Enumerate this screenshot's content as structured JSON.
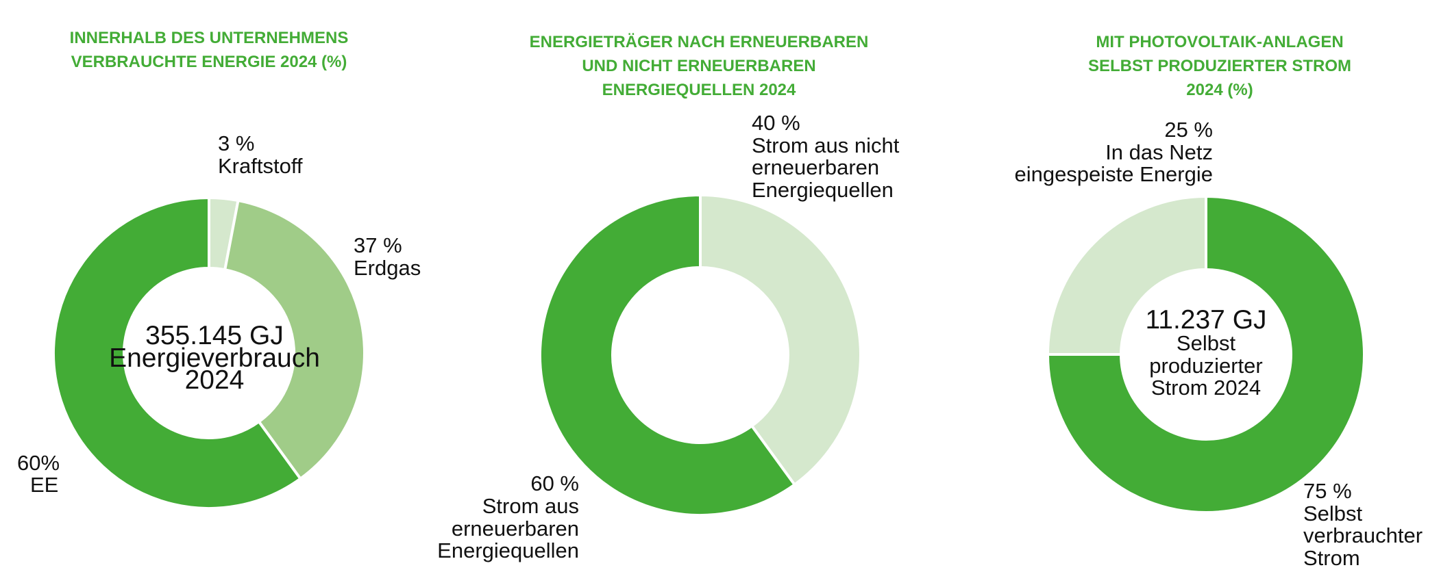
{
  "chart_data": [
    {
      "type": "pie",
      "title_lines": [
        "INNERHALB DES UNTERNEHMENS",
        "VERBRAUCHTE ENERGIE 2024 (%)"
      ],
      "center_lines": [
        "355.145 GJ",
        "Energieverbrauch",
        "2024"
      ],
      "slices": [
        {
          "label": "Kraftstoff",
          "value_text": "3 %",
          "value": 3,
          "color": "#d5e8cd"
        },
        {
          "label": "Erdgas",
          "value_text": "37 %",
          "value": 37,
          "color": "#a0cc88"
        },
        {
          "label": "EE",
          "value_text": "60%",
          "value": 60,
          "color": "#43ac36"
        }
      ]
    },
    {
      "type": "pie",
      "title_lines": [
        "ENERGIETRÄGER NACH ERNEUERBAREN",
        "UND NICHT ERNEUERBAREN",
        "ENERGIEQUELLEN 2024"
      ],
      "center_lines": [],
      "slices": [
        {
          "label": "Strom aus nicht erneuerbaren Energiequellen",
          "value_text": "40 %",
          "value": 40,
          "color": "#d5e8cd"
        },
        {
          "label": "Strom aus erneuerbaren Energiequellen",
          "value_text": "60 %",
          "value": 60,
          "color": "#43ac36"
        }
      ]
    },
    {
      "type": "pie",
      "title_lines": [
        "MIT PHOTOVOLTAIK-ANLAGEN",
        "SELBST PRODUZIERTER STROM",
        "2024 (%)"
      ],
      "center_lines": [
        "11.237 GJ",
        "Selbst",
        "produzierter",
        "Strom 2024"
      ],
      "slices": [
        {
          "label": "Selbst verbrauchter Strom",
          "value_text": "75 %",
          "value": 75,
          "color": "#43ac36"
        },
        {
          "label": "In das Netz eingespeiste Energie",
          "value_text": "25 %",
          "value": 25,
          "color": "#d5e8cd"
        }
      ]
    }
  ],
  "label_lines": [
    [
      [
        "3 %",
        "Kraftstoff"
      ],
      [
        "37 %",
        "Erdgas"
      ],
      [
        "60%",
        "EE"
      ]
    ],
    [
      [
        "40 %",
        "Strom aus nicht",
        "erneuerbaren",
        "Energiequellen"
      ],
      [
        "60 %",
        "Strom aus",
        "erneuerbaren",
        "Energiequellen"
      ]
    ],
    [
      [
        "75 %",
        "Selbst",
        "verbrauchter",
        "Strom"
      ],
      [
        "25 %",
        "In das Netz",
        "eingespeiste Energie"
      ]
    ]
  ]
}
